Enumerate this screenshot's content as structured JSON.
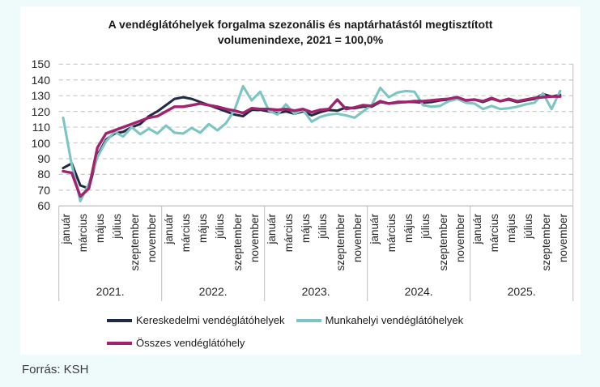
{
  "page": {
    "background": "#effbfa",
    "card_background": "#ffffff"
  },
  "title": {
    "line1": "A vendéglátóhelyek forgalma szezonális és naptárhatástól megtisztított",
    "line2": "volumenindexe, 2021 = 100,0%"
  },
  "source_caption": "Forrás: KSH",
  "chart_data": {
    "type": "line",
    "title": "A vendéglátóhelyek forgalma szezonális és naptárhatástól megtisztított volumenindexe, 2021 = 100,0%",
    "ylim": [
      60,
      150
    ],
    "ytick_interval": 10,
    "yticks": [
      150,
      140,
      130,
      120,
      110,
      100,
      90,
      80,
      70,
      60
    ],
    "grid": "horizontal-dashed",
    "x_unit": "month",
    "n_points": 59,
    "months_per_year": 12,
    "years": [
      "2021.",
      "2022.",
      "2023.",
      "2024.",
      "2025."
    ],
    "month_tick_labels": [
      "január",
      "március",
      "május",
      "július",
      "szeptember",
      "november"
    ],
    "legend_position": "bottom",
    "series": [
      {
        "name": "Kereskedelmi vendéglátóhelyek",
        "color": "#1f2a44",
        "values": [
          84,
          87,
          73,
          71,
          92,
          102,
          106,
          107,
          110,
          112,
          117,
          120,
          124,
          128,
          129,
          128,
          126,
          124,
          122,
          120,
          118,
          117,
          121,
          121,
          120,
          119,
          120,
          118.5,
          120,
          117.5,
          119.5,
          121,
          120.5,
          122.5,
          122,
          123,
          123,
          126,
          125,
          125.5,
          126,
          126,
          125.5,
          126,
          127,
          127.5,
          128.5,
          127,
          127.5,
          126,
          128,
          126.5,
          127.5,
          126,
          127,
          128,
          131,
          129.5,
          130.5
        ]
      },
      {
        "name": "Munkahelyi vendéglátóhelyek",
        "color": "#7cc5c3",
        "values": [
          116,
          86,
          63,
          74,
          91,
          101,
          107,
          104,
          110,
          105.5,
          109,
          106,
          111,
          106.5,
          106,
          109.5,
          106.5,
          112,
          108,
          112.5,
          121,
          136,
          127,
          132.5,
          120.5,
          118,
          124.5,
          118.5,
          121,
          113.5,
          116.5,
          118,
          118.5,
          117.5,
          116,
          120,
          124,
          135,
          129,
          132,
          133,
          132.5,
          124,
          123,
          123.5,
          126.5,
          128,
          125.5,
          125,
          121.5,
          123.5,
          121.5,
          122,
          123,
          124.5,
          125.5,
          131.5,
          121.5,
          133
        ]
      },
      {
        "name": "Összes vendéglátóhely",
        "color": "#a2226e",
        "values": [
          82,
          81,
          66,
          71,
          97,
          106,
          108,
          110,
          112,
          114,
          116,
          117,
          120,
          123,
          123,
          124,
          125,
          124,
          123,
          121.5,
          120.5,
          119,
          122,
          121.5,
          121.5,
          121,
          121.5,
          120.5,
          121.5,
          119.5,
          121,
          121.5,
          127.5,
          121.5,
          122.5,
          124,
          123.5,
          126.5,
          125,
          126,
          126,
          126.5,
          126.5,
          127,
          127.5,
          128,
          129,
          127,
          127.5,
          126.5,
          128.5,
          126.5,
          128,
          126.5,
          127.5,
          128.5,
          129,
          129.5,
          129.5
        ]
      }
    ]
  }
}
